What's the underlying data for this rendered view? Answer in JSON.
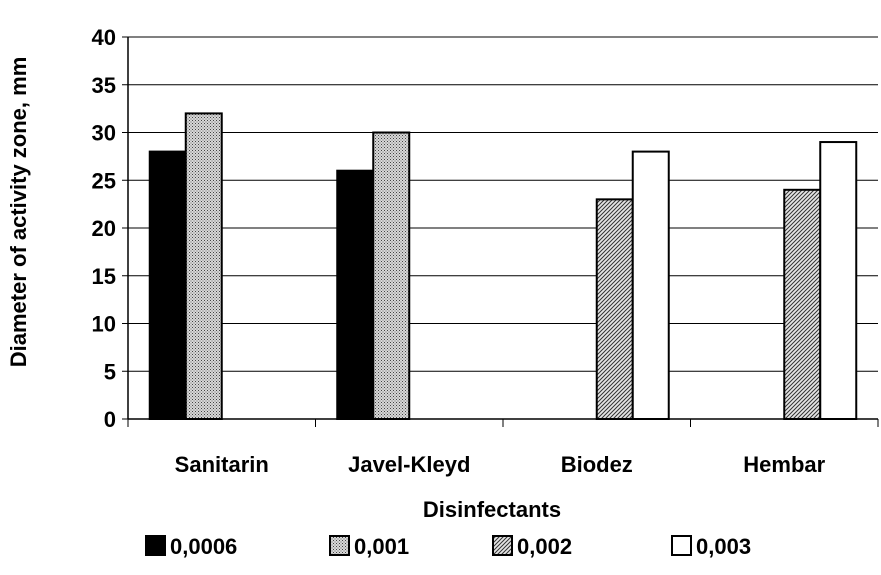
{
  "chart_data": {
    "type": "bar",
    "title": "",
    "xlabel": "Disinfectants",
    "ylabel": "Diameter of activity zone, mm",
    "ylim": [
      0,
      40
    ],
    "yticks": [
      "0",
      "5",
      "10",
      "15",
      "20",
      "25",
      "30",
      "35",
      "40"
    ],
    "grid": true,
    "legend_position": "bottom",
    "categories": [
      "Sanitarin",
      "Javel-Kleyd",
      "Biodez",
      "Hembar"
    ],
    "series": [
      {
        "name": "0,0006",
        "values": [
          28,
          26,
          null,
          null
        ],
        "fill": "#000000"
      },
      {
        "name": "0,001",
        "values": [
          32,
          30,
          null,
          null
        ],
        "fill": "pattern-dots"
      },
      {
        "name": "0,002",
        "values": [
          null,
          null,
          23,
          24
        ],
        "fill": "pattern-hatch"
      },
      {
        "name": "0,003",
        "values": [
          null,
          null,
          28,
          29
        ],
        "fill": "#ffffff"
      }
    ]
  }
}
